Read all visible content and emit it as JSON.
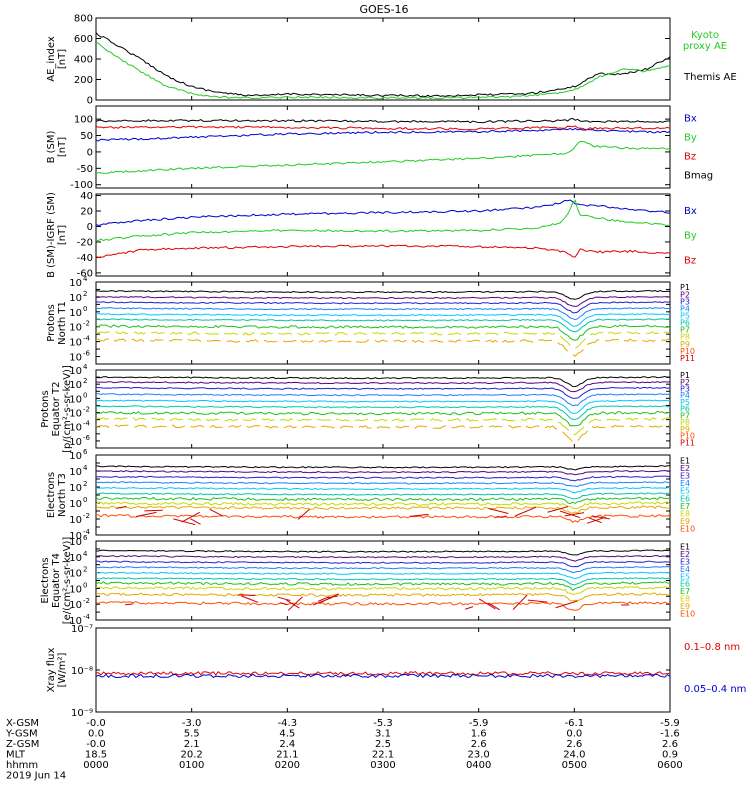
{
  "title": "GOES-16",
  "colors": {
    "black": "#000000",
    "red": "#e00000",
    "green": "#22cc22",
    "blue": "#0000cc",
    "p": [
      "#000000",
      "#5a0080",
      "#2020d0",
      "#1a80ff",
      "#00c8ff",
      "#00c8a8",
      "#20c020",
      "#c8d800",
      "#e8a800",
      "#ff5000",
      "#d00000"
    ],
    "e": [
      "#000000",
      "#5a0080",
      "#2020d0",
      "#1a80ff",
      "#00c8ff",
      "#00c8a8",
      "#20c020",
      "#c8d800",
      "#e8a800",
      "#ff5000",
      "#d00000"
    ]
  },
  "chart_data": [
    {
      "id": "ae",
      "type": "line",
      "ylabel": "AE_index\n[nT]",
      "ylim": [
        0,
        800
      ],
      "yticks": [
        "0",
        "200",
        "400",
        "600",
        "800"
      ],
      "legend": [
        "Kyoto\nproxy AE",
        "Themis AE"
      ],
      "x_hours": [
        0,
        0.25,
        0.5,
        0.75,
        1,
        1.25,
        1.5,
        1.75,
        2,
        2.5,
        3,
        3.5,
        4,
        4.25,
        4.5,
        4.75,
        5,
        5.25,
        5.5,
        5.75,
        6
      ],
      "series": [
        {
          "name": "Themis AE",
          "color": "black",
          "values": [
            650,
            520,
            380,
            230,
            130,
            80,
            50,
            40,
            60,
            50,
            45,
            40,
            50,
            55,
            60,
            90,
            130,
            260,
            250,
            300,
            420
          ]
        },
        {
          "name": "Kyoto proxy AE",
          "color": "green",
          "values": [
            560,
            400,
            260,
            130,
            60,
            30,
            20,
            20,
            30,
            25,
            20,
            20,
            25,
            30,
            40,
            60,
            100,
            220,
            300,
            280,
            330
          ]
        }
      ]
    },
    {
      "id": "bsm",
      "type": "line",
      "ylabel": "B (SM)\n[nT]",
      "ylim": [
        -110,
        140
      ],
      "yticks": [
        "-100",
        "-50",
        "0",
        "50",
        "100"
      ],
      "legend": [
        "Bx",
        "By",
        "Bz",
        "Bmag"
      ],
      "x_hours": [
        0,
        1,
        2,
        3,
        4,
        4.9,
        5.0,
        5.05,
        5.2,
        5.5,
        6
      ],
      "series": [
        {
          "name": "Bx",
          "color": "blue",
          "values": [
            35,
            45,
            55,
            60,
            62,
            68,
            70,
            68,
            65,
            63,
            60
          ]
        },
        {
          "name": "By",
          "color": "green",
          "values": [
            -65,
            -50,
            -40,
            -30,
            -20,
            -5,
            10,
            35,
            18,
            12,
            10
          ]
        },
        {
          "name": "Bz",
          "color": "red",
          "values": [
            75,
            76,
            75,
            72,
            70,
            75,
            80,
            70,
            72,
            73,
            72
          ]
        },
        {
          "name": "Bmag",
          "color": "black",
          "values": [
            95,
            96,
            95,
            93,
            92,
            95,
            100,
            95,
            92,
            93,
            92
          ]
        }
      ]
    },
    {
      "id": "bdiff",
      "type": "line",
      "ylabel": "B (SM)-IGRF (SM)\n[nT]",
      "ylim": [
        -64,
        42
      ],
      "yticks": [
        "-60",
        "-40",
        "-20",
        "0",
        "20",
        "40"
      ],
      "legend": [
        "Bx",
        "By",
        "Bz"
      ],
      "x_hours": [
        0,
        0.5,
        1,
        2,
        3,
        4,
        4.6,
        4.85,
        4.95,
        5.0,
        5.05,
        5.3,
        5.6,
        6
      ],
      "series": [
        {
          "name": "Bx",
          "color": "blue",
          "values": [
            2,
            8,
            12,
            16,
            18,
            20,
            25,
            30,
            35,
            30,
            28,
            26,
            22,
            18
          ]
        },
        {
          "name": "By",
          "color": "green",
          "values": [
            -18,
            -12,
            -8,
            -5,
            -6,
            -5,
            -2,
            5,
            20,
            38,
            15,
            10,
            5,
            2
          ]
        },
        {
          "name": "Bz",
          "color": "red",
          "values": [
            -40,
            -30,
            -28,
            -26,
            -25,
            -26,
            -28,
            -32,
            -35,
            -42,
            -30,
            -33,
            -32,
            -35
          ]
        }
      ]
    },
    {
      "id": "p_t1",
      "type": "line",
      "log": true,
      "ylabel": "Protons\nNorth T1",
      "ylim_exp": [
        -7,
        4
      ],
      "labeled_exp": [
        -6,
        -4,
        -2,
        0,
        2,
        4
      ],
      "legend": [
        "P1",
        "P2",
        "P3",
        "P4",
        "P5",
        "P6",
        "P7",
        "P8",
        "P9",
        "P10",
        "P11"
      ],
      "base_exp": [
        2.8,
        2.0,
        1.3,
        0.5,
        -0.3,
        -1.0,
        -1.9,
        -2.8,
        -3.8,
        null,
        null
      ],
      "dip": {
        "center_hour": 5.0,
        "depth": 1.8,
        "width": 0.12
      }
    },
    {
      "id": "p_t2",
      "type": "line",
      "log": true,
      "ylabel": "Protons\nEquator T2\n[p/(cm²-s-sr-keV)]",
      "ylim_exp": [
        -7,
        4
      ],
      "labeled_exp": [
        -6,
        -4,
        -2,
        0,
        2,
        4
      ],
      "legend": [
        "P1",
        "P2",
        "P3",
        "P4",
        "P5",
        "P6",
        "P7",
        "P8",
        "P9",
        "P10",
        "P11"
      ],
      "base_exp": [
        3.0,
        2.3,
        1.5,
        0.6,
        -0.3,
        -1.1,
        -2.0,
        -2.9,
        -3.9,
        null,
        null
      ],
      "dip": {
        "center_hour": 5.0,
        "depth": 2.0,
        "width": 0.12
      }
    },
    {
      "id": "e_t3",
      "type": "line",
      "log": true,
      "ylabel": "Electrons\nNorth T3",
      "ylim_exp": [
        -4,
        6
      ],
      "labeled_exp": [
        -4,
        -2,
        0,
        2,
        4,
        6
      ],
      "legend": [
        "E1",
        "E2",
        "E3",
        "E4",
        "E5",
        "E6",
        "E7",
        "E8",
        "E9",
        "E10"
      ],
      "base_exp": [
        4.6,
        4.0,
        3.3,
        2.6,
        1.9,
        1.2,
        0.6,
        0.0,
        -0.5,
        -1.6
      ],
      "dip": {
        "center_hour": 5.0,
        "depth": 0.6,
        "width": 0.1
      }
    },
    {
      "id": "e_t4",
      "type": "line",
      "log": true,
      "ylabel": "Electrons\nEquator T4\n[e/(cm²-s-sr-keV)]",
      "ylim_exp": [
        -4,
        6
      ],
      "labeled_exp": [
        -4,
        -2,
        0,
        2,
        4,
        6
      ],
      "legend": [
        "E1",
        "E2",
        "E3",
        "E4",
        "E5",
        "E6",
        "E7",
        "E8",
        "E9",
        "E10"
      ],
      "base_exp": [
        4.8,
        4.1,
        3.4,
        2.7,
        2.0,
        1.3,
        0.7,
        0.1,
        -0.7,
        -1.8
      ],
      "dip": {
        "center_hour": 5.0,
        "depth": 0.8,
        "width": 0.1
      }
    },
    {
      "id": "xray",
      "type": "line",
      "log": true,
      "ylabel": "Xray flux\n[W/m²]",
      "ylim_exp": [
        -9,
        -7
      ],
      "ytick_labels": [
        {
          "exp": -9,
          "label": "10⁻⁹"
        },
        {
          "exp": -8,
          "label": "10⁻⁸"
        },
        {
          "exp": -7,
          "label": "10⁻⁷"
        }
      ],
      "legend": [
        "0.1–0.8 nm",
        "0.05–0.4 nm"
      ],
      "series": [
        {
          "name": "0.1–0.8 nm",
          "color": "red",
          "level_exp": -8.08
        },
        {
          "name": "0.05–0.4 nm",
          "color": "blue",
          "level_exp": -8.14
        }
      ]
    }
  ],
  "xaxis": {
    "hours": [
      0,
      1,
      2,
      3,
      4,
      5,
      6
    ],
    "rows": [
      {
        "label": "X-GSM",
        "values": [
          "-0.0",
          "-3.0",
          "-4.3",
          "-5.3",
          "-5.9",
          "-6.1",
          "-5.9"
        ]
      },
      {
        "label": "Y-GSM",
        "values": [
          "0.0",
          "5.5",
          "4.5",
          "3.1",
          "1.6",
          "0.0",
          "-1.6"
        ]
      },
      {
        "label": "Z-GSM",
        "values": [
          "-0.0",
          "2.1",
          "2.4",
          "2.5",
          "2.6",
          "2.6",
          "2.6"
        ]
      },
      {
        "label": "MLT",
        "values": [
          "18.5",
          "20.2",
          "21.1",
          "22.1",
          "23.0",
          "24.0",
          "0.9"
        ]
      },
      {
        "label": "hhmm",
        "values": [
          "0000",
          "0100",
          "0200",
          "0300",
          "0400",
          "0500",
          "0600"
        ]
      }
    ],
    "date": "2019 Jun 14"
  }
}
